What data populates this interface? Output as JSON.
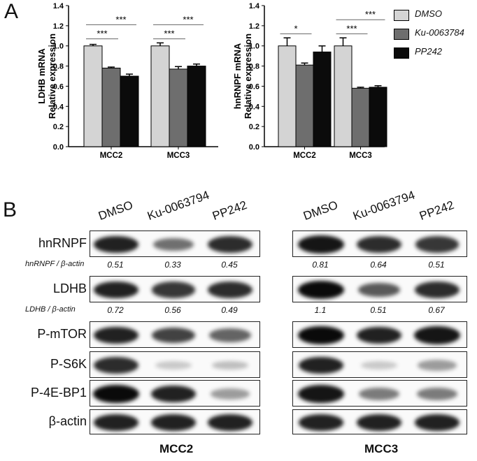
{
  "panel_a_letter": "A",
  "panel_b_letter": "B",
  "legend": {
    "entries": [
      {
        "label": "DMSO",
        "color": "#d4d4d4"
      },
      {
        "label": "Ku-0063784",
        "color": "#6e6e6e"
      },
      {
        "label": "PP242",
        "color": "#0b0b0b"
      }
    ]
  },
  "chart_data": [
    {
      "type": "bar",
      "ylabel_line1": "LDHB mRNA",
      "ylabel_line2": "Relative expression",
      "categories": [
        "MCC2",
        "MCC3"
      ],
      "ylim": [
        0,
        1.4
      ],
      "yticks": [
        "0.0",
        "0.2",
        "0.4",
        "0.6",
        "0.8",
        "1.0",
        "1.2",
        "1.4"
      ],
      "series": [
        {
          "name": "DMSO",
          "values": [
            1.0,
            1.0
          ],
          "errors": [
            0.015,
            0.03
          ]
        },
        {
          "name": "Ku-0063784",
          "values": [
            0.78,
            0.77
          ],
          "errors": [
            0.01,
            0.025
          ]
        },
        {
          "name": "PP242",
          "values": [
            0.7,
            0.8
          ],
          "errors": [
            0.02,
            0.02
          ]
        }
      ],
      "significance": [
        {
          "cat": 0,
          "from": 0,
          "to": 1,
          "label": "***",
          "level": 1.07
        },
        {
          "cat": 0,
          "from": 0,
          "to": 2,
          "label": "***",
          "level": 1.21
        },
        {
          "cat": 1,
          "from": 0,
          "to": 1,
          "label": "***",
          "level": 1.07
        },
        {
          "cat": 1,
          "from": 0,
          "to": 2,
          "label": "***",
          "level": 1.21
        }
      ]
    },
    {
      "type": "bar",
      "ylabel_line1": "hnRNPF mRNA",
      "ylabel_line2": "Relative expression",
      "categories": [
        "MCC2",
        "MCC3"
      ],
      "ylim": [
        0,
        1.4
      ],
      "yticks": [
        "0.0",
        "0.2",
        "0.4",
        "0.6",
        "0.8",
        "1.0",
        "1.2",
        "1.4"
      ],
      "series": [
        {
          "name": "DMSO",
          "values": [
            1.0,
            1.0
          ],
          "errors": [
            0.08,
            0.08
          ]
        },
        {
          "name": "Ku-0063784",
          "values": [
            0.81,
            0.58
          ],
          "errors": [
            0.02,
            0.01
          ]
        },
        {
          "name": "PP242",
          "values": [
            0.94,
            0.59
          ],
          "errors": [
            0.06,
            0.015
          ]
        }
      ],
      "significance": [
        {
          "cat": 0,
          "from": 0,
          "to": 1,
          "label": "*",
          "level": 1.12
        },
        {
          "cat": 1,
          "from": 0,
          "to": 1,
          "label": "***",
          "level": 1.12
        },
        {
          "cat": 1,
          "from": 0,
          "to": 2,
          "label": "***",
          "level": 1.26
        }
      ]
    }
  ],
  "blot": {
    "columns": [
      "DMSO",
      "Ku-0063794",
      "PP242"
    ],
    "cell_lines": [
      "MCC2",
      "MCC3"
    ],
    "rows": [
      {
        "label": "hnRNPF",
        "intensities": [
          [
            0.9,
            0.55,
            0.85
          ],
          [
            0.95,
            0.85,
            0.8
          ]
        ]
      },
      {
        "label": "LDHB",
        "intensities": [
          [
            0.9,
            0.8,
            0.85
          ],
          [
            1.0,
            0.65,
            0.85
          ]
        ]
      },
      {
        "label": "P-mTOR",
        "intensities": [
          [
            0.9,
            0.75,
            0.6
          ],
          [
            1.0,
            0.9,
            0.95
          ]
        ]
      },
      {
        "label": "P-S6K",
        "intensities": [
          [
            0.85,
            0.15,
            0.2
          ],
          [
            0.9,
            0.15,
            0.35
          ]
        ]
      },
      {
        "label": "P-4E-BP1",
        "intensities": [
          [
            1.0,
            0.9,
            0.35
          ],
          [
            0.95,
            0.5,
            0.5
          ]
        ]
      },
      {
        "label": "β-actin",
        "intensities": [
          [
            0.9,
            0.9,
            0.9
          ],
          [
            0.9,
            0.9,
            0.9
          ]
        ]
      }
    ],
    "ratios": [
      {
        "label": "hnRNPF / β-actin",
        "after_row": 0,
        "values": [
          [
            "0.51",
            "0.33",
            "0.45"
          ],
          [
            "0.81",
            "0.64",
            "0.51"
          ]
        ]
      },
      {
        "label": "LDHB / β-actin",
        "after_row": 1,
        "values": [
          [
            "0.72",
            "0.56",
            "0.49"
          ],
          [
            "1.1",
            "0.51",
            "0.67"
          ]
        ]
      }
    ]
  }
}
